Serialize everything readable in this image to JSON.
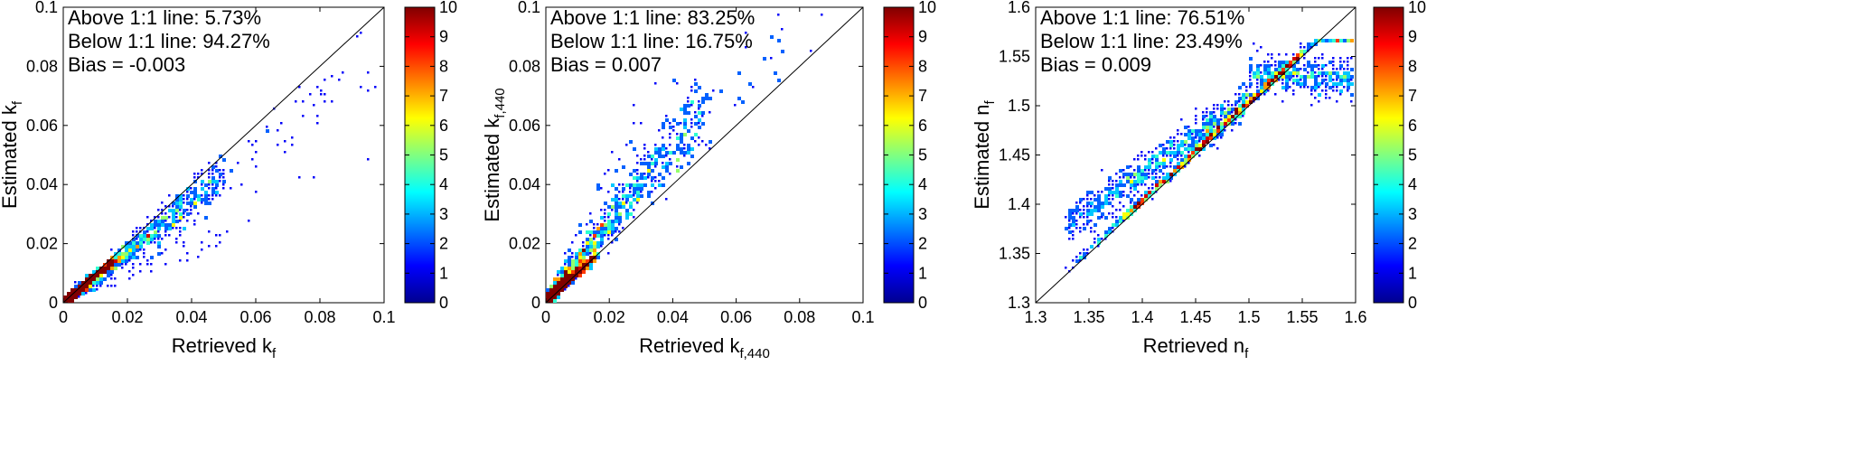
{
  "chart_data": [
    {
      "type": "heatmap",
      "xlabel": "Retrieved k",
      "xlabel_sub": "f",
      "ylabel": "Estimated k",
      "ylabel_sub": "f",
      "xlim": [
        0,
        0.1
      ],
      "ylim": [
        0,
        0.1
      ],
      "x_ticks": [
        "0",
        "0.02",
        "0.04",
        "0.06",
        "0.08",
        "0.1"
      ],
      "y_ticks": [
        "0",
        "0.02",
        "0.04",
        "0.06",
        "0.08",
        "0.1"
      ],
      "stats": [
        "Above 1:1 line: 5.73%",
        "Below 1:1 line: 94.27%",
        "Bias = -0.003"
      ],
      "colorbar_range": [
        0,
        10
      ],
      "colorbar_ticks": [
        "0",
        "1",
        "2",
        "3",
        "4",
        "5",
        "6",
        "7",
        "8",
        "9",
        "10"
      ],
      "reference_line": "1:1",
      "pattern": {
        "slope": 0.87,
        "spread": 0.006,
        "xmax_dense": 0.05,
        "n_points": 1400
      }
    },
    {
      "type": "heatmap",
      "xlabel": "Retrieved k",
      "xlabel_sub": "f,440",
      "ylabel": "Estimated k",
      "ylabel_sub": "f,440",
      "xlim": [
        0,
        0.1
      ],
      "ylim": [
        0,
        0.1
      ],
      "x_ticks": [
        "0",
        "0.02",
        "0.04",
        "0.06",
        "0.08",
        "0.1"
      ],
      "y_ticks": [
        "0",
        "0.02",
        "0.04",
        "0.06",
        "0.08",
        "0.1"
      ],
      "stats": [
        "Above 1:1 line: 83.25%",
        "Below 1:1 line: 16.75%",
        "Bias = 0.007"
      ],
      "colorbar_range": [
        0,
        10
      ],
      "colorbar_ticks": [
        "0",
        "1",
        "2",
        "3",
        "4",
        "5",
        "6",
        "7",
        "8",
        "9",
        "10"
      ],
      "reference_line": "1:1",
      "pattern": {
        "slope": 1.35,
        "spread": 0.012,
        "xmax_dense": 0.05,
        "n_points": 1600
      }
    },
    {
      "type": "heatmap",
      "xlabel": "Retrieved n",
      "xlabel_sub": "f",
      "ylabel": "Estimated n",
      "ylabel_sub": "f",
      "xlim": [
        1.3,
        1.6
      ],
      "ylim": [
        1.3,
        1.6
      ],
      "x_ticks": [
        "1.3",
        "1.35",
        "1.4",
        "1.45",
        "1.5",
        "1.55",
        "1.6"
      ],
      "y_ticks": [
        "1.3",
        "1.35",
        "1.4",
        "1.45",
        "1.5",
        "1.55",
        "1.6"
      ],
      "stats": [
        "Above 1:1 line: 76.51%",
        "Below 1:1 line: 23.49%",
        "Bias = 0.009"
      ],
      "colorbar_range": [
        0,
        10
      ],
      "colorbar_ticks": [
        "0",
        "1",
        "2",
        "3",
        "4",
        "5",
        "6",
        "7",
        "8",
        "9",
        "10"
      ],
      "reference_line": "1:1",
      "pattern": {
        "xstart": 1.33,
        "plateau": 1.545,
        "spread": 0.02,
        "n_points": 1500
      }
    }
  ]
}
